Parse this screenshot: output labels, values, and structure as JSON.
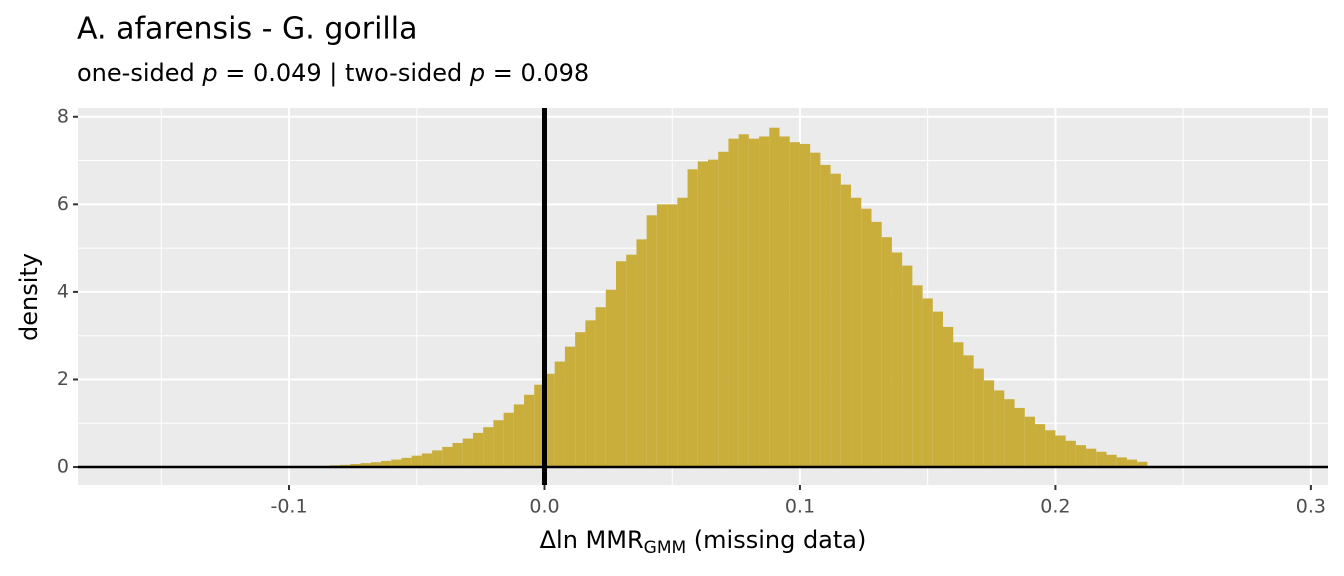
{
  "chart_data": {
    "type": "histogram",
    "title": "A. afarensis - G. gorilla",
    "subtitle_parts": [
      "one-sided ",
      "p",
      " = 0.049 | two-sided ",
      "p",
      " = 0.098"
    ],
    "xlabel_parts": [
      "Δln MMR",
      "GMM",
      " (missing data)"
    ],
    "ylabel": "density",
    "color": "#c9ae3c",
    "bins": [
      -0.084,
      -0.08,
      -0.076,
      -0.072,
      -0.068,
      -0.064,
      -0.06,
      -0.056,
      -0.052,
      -0.048,
      -0.044,
      -0.04,
      -0.036,
      -0.032,
      -0.028,
      -0.024,
      -0.02,
      -0.016,
      -0.012,
      -0.008,
      -0.004,
      0,
      0.004,
      0.008,
      0.012,
      0.016,
      0.02,
      0.024,
      0.028,
      0.032,
      0.036,
      0.04,
      0.044,
      0.048,
      0.052,
      0.056,
      0.06,
      0.064,
      0.068,
      0.072,
      0.076,
      0.08,
      0.084,
      0.088,
      0.092,
      0.096,
      0.1,
      0.104,
      0.108,
      0.112,
      0.116,
      0.12,
      0.124,
      0.128,
      0.132,
      0.136,
      0.14,
      0.144,
      0.148,
      0.152,
      0.156,
      0.16,
      0.164,
      0.168,
      0.172,
      0.176,
      0.18,
      0.184,
      0.188,
      0.192,
      0.196,
      0.2,
      0.204,
      0.208,
      0.212,
      0.216,
      0.22,
      0.224,
      0.228,
      0.232,
      0.236
    ],
    "values": [
      0.04,
      0.05,
      0.07,
      0.09,
      0.11,
      0.14,
      0.17,
      0.21,
      0.26,
      0.31,
      0.38,
      0.46,
      0.55,
      0.65,
      0.78,
      0.91,
      1.07,
      1.24,
      1.43,
      1.65,
      1.88,
      2.13,
      2.41,
      2.75,
      3.08,
      3.35,
      3.65,
      4.05,
      4.7,
      4.85,
      5.2,
      5.75,
      6.0,
      6.0,
      6.15,
      6.8,
      6.98,
      7.02,
      7.2,
      7.5,
      7.6,
      7.5,
      7.55,
      7.75,
      7.55,
      7.42,
      7.38,
      7.18,
      6.9,
      6.7,
      6.45,
      6.15,
      5.9,
      5.6,
      5.25,
      4.9,
      4.6,
      4.15,
      3.85,
      3.55,
      3.2,
      2.85,
      2.55,
      2.25,
      1.98,
      1.75,
      1.55,
      1.35,
      1.15,
      0.98,
      0.84,
      0.72,
      0.6,
      0.5,
      0.42,
      0.35,
      0.28,
      0.22,
      0.17,
      0.12
    ],
    "vline": 0,
    "hline": 0,
    "xlim": [
      -0.1826,
      0.3067
    ],
    "ylim": [
      -0.41,
      8.2
    ],
    "xticks": [
      -0.1,
      {
        "value": 0,
        "label": "0.0"
      },
      0.1,
      0.2,
      0.3
    ],
    "xminor": [
      -0.15,
      -0.05,
      0.05,
      0.15,
      0.25
    ],
    "yticks": [
      0,
      2,
      4,
      6,
      8
    ],
    "yminor": [
      1,
      3,
      5,
      7
    ],
    "grid": true
  }
}
